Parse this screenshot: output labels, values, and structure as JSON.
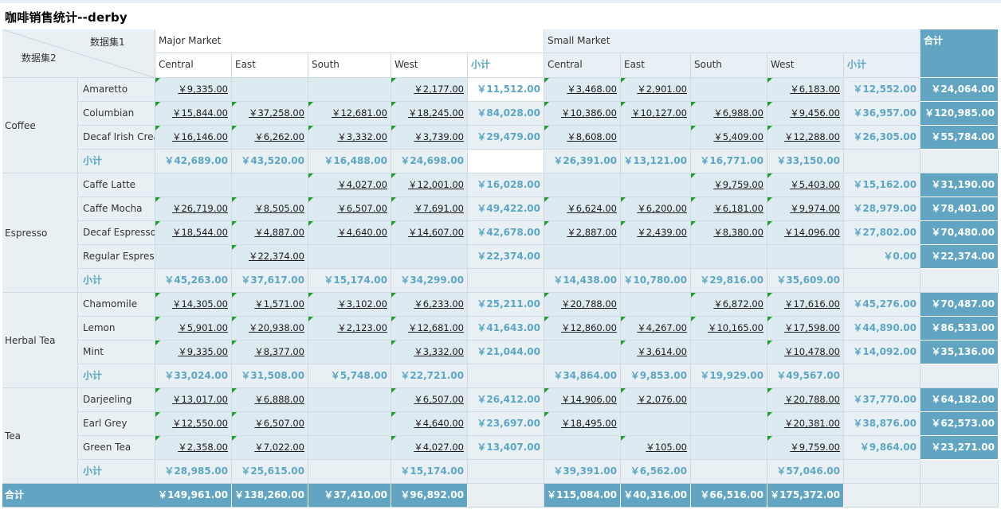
{
  "title": "咖啡销售统计--derby",
  "header": {
    "dataset1": "数据集1",
    "dataset2": "数据集2",
    "markets": [
      {
        "name": "Major Market",
        "regions": [
          "Central",
          "East",
          "South",
          "West"
        ],
        "subtotal": "小计"
      },
      {
        "name": "Small Market",
        "regions": [
          "Central",
          "East",
          "South",
          "West"
        ],
        "subtotal": "小计"
      }
    ],
    "total": "合计"
  },
  "groups": [
    {
      "name": "Coffee",
      "rows": [
        {
          "product": "Amaretto",
          "values": [
            "￥9,335.00",
            "",
            "",
            "￥2,177.00",
            "￥11,512.00",
            "￥3,468.00",
            "￥2,901.00",
            "",
            "￥6,183.00",
            "￥12,552.00"
          ],
          "total": "￥24,064.00"
        },
        {
          "product": "Columbian",
          "values": [
            "￥15,844.00",
            "￥37,258.00",
            "￥12,681.00",
            "￥18,245.00",
            "￥84,028.00",
            "￥10,386.00",
            "￥10,127.00",
            "￥6,988.00",
            "￥9,456.00",
            "￥36,957.00"
          ],
          "total": "￥120,985.00"
        },
        {
          "product": "Decaf Irish Cream",
          "values": [
            "￥16,146.00",
            "￥6,262.00",
            "￥3,332.00",
            "￥3,739.00",
            "￥29,479.00",
            "￥8,608.00",
            "",
            "￥5,409.00",
            "￥12,288.00",
            "￥26,305.00"
          ],
          "total": "￥55,784.00"
        }
      ],
      "subtotal_label": "小计",
      "subtotals": [
        "￥42,689.00",
        "￥43,520.00",
        "￥16,488.00",
        "￥24,698.00",
        "",
        "￥26,391.00",
        "￥13,121.00",
        "￥16,771.00",
        "￥33,150.00",
        ""
      ],
      "subtotal_total": ""
    },
    {
      "name": "Espresso",
      "rows": [
        {
          "product": "Caffe Latte",
          "values": [
            "",
            "",
            "￥4,027.00",
            "￥12,001.00",
            "￥16,028.00",
            "",
            "",
            "￥9,759.00",
            "￥5,403.00",
            "￥15,162.00"
          ],
          "total": "￥31,190.00"
        },
        {
          "product": "Caffe Mocha",
          "values": [
            "￥26,719.00",
            "￥8,505.00",
            "￥6,507.00",
            "￥7,691.00",
            "￥49,422.00",
            "￥6,624.00",
            "￥6,200.00",
            "￥6,181.00",
            "￥9,974.00",
            "￥28,979.00"
          ],
          "total": "￥78,401.00"
        },
        {
          "product": "Decaf Espresso",
          "values": [
            "￥18,544.00",
            "￥4,887.00",
            "￥4,640.00",
            "￥14,607.00",
            "￥42,678.00",
            "￥2,887.00",
            "￥2,439.00",
            "￥8,380.00",
            "￥14,096.00",
            "￥27,802.00"
          ],
          "total": "￥70,480.00"
        },
        {
          "product": "Regular Espresso",
          "values": [
            "",
            "￥22,374.00",
            "",
            "",
            "￥22,374.00",
            "",
            "",
            "",
            "",
            "￥0.00"
          ],
          "total": "￥22,374.00"
        }
      ],
      "subtotal_label": "小计",
      "subtotals": [
        "￥45,263.00",
        "￥37,617.00",
        "￥15,174.00",
        "￥34,299.00",
        "",
        "￥14,438.00",
        "￥10,780.00",
        "￥29,816.00",
        "￥35,609.00",
        ""
      ],
      "subtotal_total": ""
    },
    {
      "name": "Herbal Tea",
      "rows": [
        {
          "product": "Chamomile",
          "values": [
            "￥14,305.00",
            "￥1,571.00",
            "￥3,102.00",
            "￥6,233.00",
            "￥25,211.00",
            "￥20,788.00",
            "",
            "￥6,872.00",
            "￥17,616.00",
            "￥45,276.00"
          ],
          "total": "￥70,487.00"
        },
        {
          "product": "Lemon",
          "values": [
            "￥5,901.00",
            "￥20,938.00",
            "￥2,123.00",
            "￥12,681.00",
            "￥41,643.00",
            "￥12,860.00",
            "￥4,267.00",
            "￥10,165.00",
            "￥17,598.00",
            "￥44,890.00"
          ],
          "total": "￥86,533.00"
        },
        {
          "product": "Mint",
          "values": [
            "￥9,335.00",
            "￥8,377.00",
            "",
            "￥3,332.00",
            "￥21,044.00",
            "",
            "￥3,614.00",
            "",
            "￥10,478.00",
            "￥14,092.00"
          ],
          "total": "￥35,136.00"
        }
      ],
      "subtotal_label": "小计",
      "subtotals": [
        "￥33,024.00",
        "￥31,508.00",
        "￥5,748.00",
        "￥22,721.00",
        "",
        "￥34,864.00",
        "￥9,853.00",
        "￥19,929.00",
        "￥49,567.00",
        ""
      ],
      "subtotal_total": ""
    },
    {
      "name": "Tea",
      "rows": [
        {
          "product": "Darjeeling",
          "values": [
            "￥13,017.00",
            "￥6,888.00",
            "",
            "￥6,507.00",
            "￥26,412.00",
            "￥14,906.00",
            "￥2,076.00",
            "",
            "￥20,788.00",
            "￥37,770.00"
          ],
          "total": "￥64,182.00"
        },
        {
          "product": "Earl Grey",
          "values": [
            "￥12,550.00",
            "￥6,507.00",
            "",
            "￥4,640.00",
            "￥23,697.00",
            "￥18,495.00",
            "",
            "",
            "￥20,381.00",
            "￥38,876.00"
          ],
          "total": "￥62,573.00"
        },
        {
          "product": "Green Tea",
          "values": [
            "￥2,358.00",
            "￥7,022.00",
            "",
            "￥4,027.00",
            "￥13,407.00",
            "",
            "￥105.00",
            "",
            "￥9,759.00",
            "￥9,864.00"
          ],
          "total": "￥23,271.00"
        }
      ],
      "subtotal_label": "小计",
      "subtotals": [
        "￥28,985.00",
        "￥25,615.00",
        "",
        "￥15,174.00",
        "",
        "￥39,391.00",
        "￥6,562.00",
        "",
        "￥57,046.00",
        ""
      ],
      "subtotal_total": ""
    }
  ],
  "grand_total": {
    "label": "合计",
    "values": [
      "￥149,961.00",
      "￥138,260.00",
      "￥37,410.00",
      "￥96,892.00",
      "",
      "￥115,084.00",
      "￥40,316.00",
      "￥66,516.00",
      "￥175,372.00",
      ""
    ],
    "total": ""
  }
}
